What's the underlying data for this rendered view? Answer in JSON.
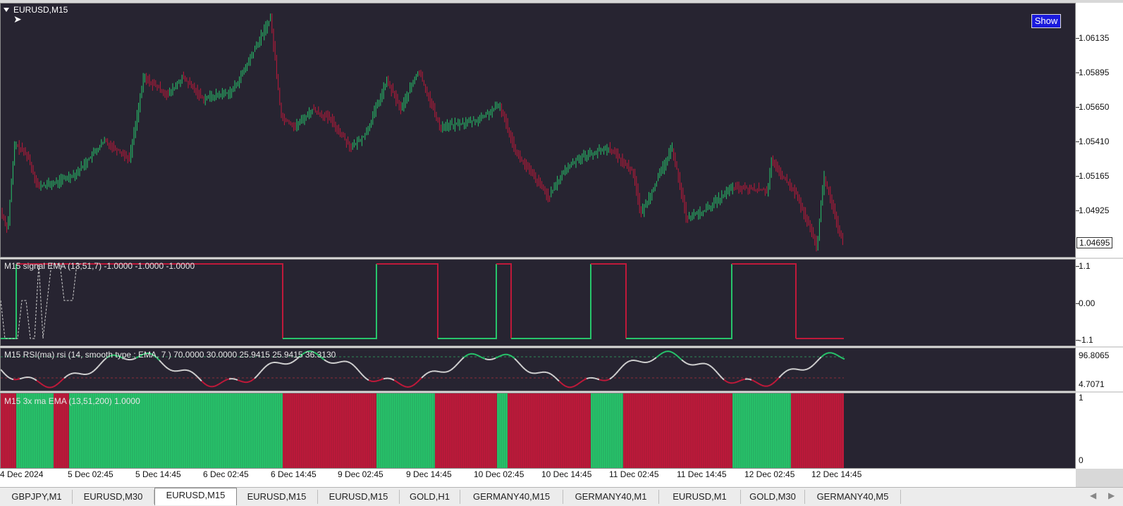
{
  "chart": {
    "symbol_label": "EURUSD,M15",
    "show_button": "Show",
    "price_labels": [
      "1.06135",
      "1.05895",
      "1.05650",
      "1.05410",
      "1.05165",
      "1.04925"
    ],
    "current_price": "1.04695",
    "colors": {
      "bull": "#27c56b",
      "bear": "#c0193a",
      "background": "#272431"
    }
  },
  "signal_ema": {
    "label": "M15 signal EMA (13,51,7) -1.0000 -1.0000 -1.0000",
    "axis": [
      "1.1",
      "0.00",
      "-1.1"
    ]
  },
  "rsi": {
    "label": "M15 RSI(ma) rsi (14, smooth type : EMA, 7 ) 70.0000 30.0000 25.9415 25.9415 36.3130",
    "axis": [
      "96.8065",
      "4.7071"
    ]
  },
  "ma3x": {
    "label": "M15 3x ma EMA (13,51,200) 1.0000",
    "axis": [
      "1",
      "0"
    ]
  },
  "time_axis": [
    "4 Dec 2024",
    "5 Dec 02:45",
    "5 Dec 14:45",
    "6 Dec 02:45",
    "6 Dec 14:45",
    "9 Dec 02:45",
    "9 Dec 14:45",
    "10 Dec 02:45",
    "10 Dec 14:45",
    "11 Dec 02:45",
    "11 Dec 14:45",
    "12 Dec 02:45",
    "12 Dec 14:45"
  ],
  "tabs": [
    "GBPJPY,M1",
    "EURUSD,M30",
    "EURUSD,M15",
    "EURUSD,M15",
    "EURUSD,M15",
    "GOLD,H1",
    "GERMANY40,M15",
    "GERMANY40,M1",
    "EURUSD,M1",
    "GOLD,M30",
    "GERMANY40,M5"
  ],
  "active_tab_index": 2
}
